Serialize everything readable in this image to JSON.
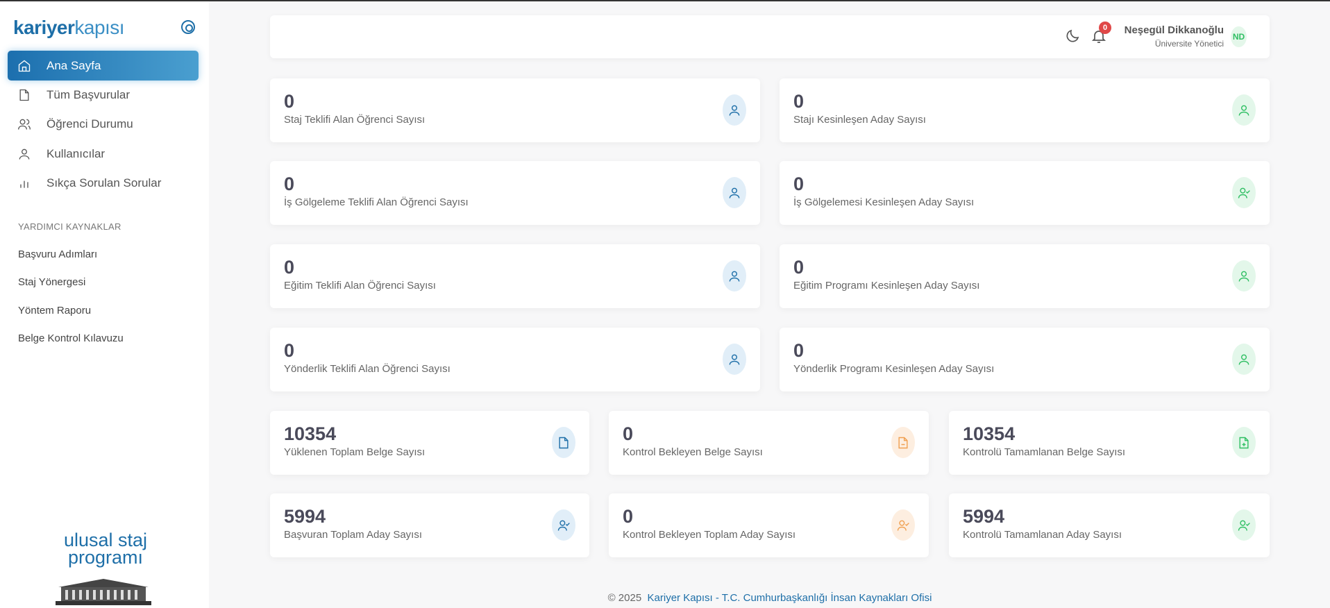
{
  "sidebar": {
    "logo": {
      "bold": "kariyer",
      "light": "kapısı"
    },
    "items": [
      {
        "label": "Ana Sayfa",
        "icon": "home-icon",
        "active": true
      },
      {
        "label": "Tüm Başvurular",
        "icon": "file-icon"
      },
      {
        "label": "Öğrenci Durumu",
        "icon": "users-icon"
      },
      {
        "label": "Kullanıcılar",
        "icon": "user-icon"
      },
      {
        "label": "Sıkça Sorulan Sorular",
        "icon": "bar-chart-icon"
      }
    ],
    "section_title": "YARDIMCI KAYNAKLAR",
    "resources": [
      "Başvuru Adımları",
      "Staj Yönergesi",
      "Yöntem Raporu",
      "Belge Kontrol Kılavuzu"
    ],
    "bottom_logo": {
      "line1": "ulusal staj",
      "line2": "programı"
    }
  },
  "header": {
    "notifications": "0",
    "user_name": "Neşegül Dikkanoğlu",
    "user_role": "Üniversite Yönetici",
    "avatar_initials": "ND"
  },
  "stats": [
    {
      "value": "0",
      "label": "Staj Teklifi Alan Öğrenci Sayısı",
      "color": "blue",
      "icon": "user-icon"
    },
    {
      "value": "0",
      "label": "Stajı Kesinleşen Aday Sayısı",
      "color": "green",
      "icon": "user-icon"
    },
    {
      "value": "0",
      "label": "İş Gölgeleme Teklifi Alan Öğrenci Sayısı",
      "color": "blue",
      "icon": "user-icon"
    },
    {
      "value": "0",
      "label": "İş Gölgelemesi Kesinleşen Aday Sayısı",
      "color": "green",
      "icon": "user-check-icon"
    },
    {
      "value": "0",
      "label": "Eğitim Teklifi Alan Öğrenci Sayısı",
      "color": "blue",
      "icon": "user-icon"
    },
    {
      "value": "0",
      "label": "Eğitim Programı Kesinleşen Aday Sayısı",
      "color": "green",
      "icon": "user-icon"
    },
    {
      "value": "0",
      "label": "Yönderlik Teklifi Alan Öğrenci Sayısı",
      "color": "blue",
      "icon": "user-icon"
    },
    {
      "value": "0",
      "label": "Yönderlik Programı Kesinleşen Aday Sayısı",
      "color": "green",
      "icon": "user-icon"
    },
    {
      "value": "10354",
      "label": "Yüklenen Toplam Belge Sayısı",
      "color": "blue",
      "icon": "file-icon"
    },
    {
      "value": "0",
      "label": "Kontrol Bekleyen Belge Sayısı",
      "color": "orange",
      "icon": "file-minus-icon"
    },
    {
      "value": "10354",
      "label": "Kontrolü Tamamlanan Belge Sayısı",
      "color": "green",
      "icon": "file-plus-icon"
    },
    {
      "value": "5994",
      "label": "Başvuran Toplam Aday Sayısı",
      "color": "blue",
      "icon": "user-check-icon"
    },
    {
      "value": "0",
      "label": "Kontrol Bekleyen Toplam Aday Sayısı",
      "color": "orange",
      "icon": "user-check-icon"
    },
    {
      "value": "5994",
      "label": "Kontrolü Tamamlanan Aday Sayısı",
      "color": "green",
      "icon": "user-check-icon"
    }
  ],
  "footer": {
    "copyright": "© 2025",
    "link": "Kariyer Kapısı - T.C. Cumhurbaşkanlığı İnsan Kaynakları Ofisi"
  },
  "colors": {
    "primary": "#1e6fa8",
    "green": "#2fbf63",
    "orange": "#f0a050",
    "badge": "#e04848"
  }
}
